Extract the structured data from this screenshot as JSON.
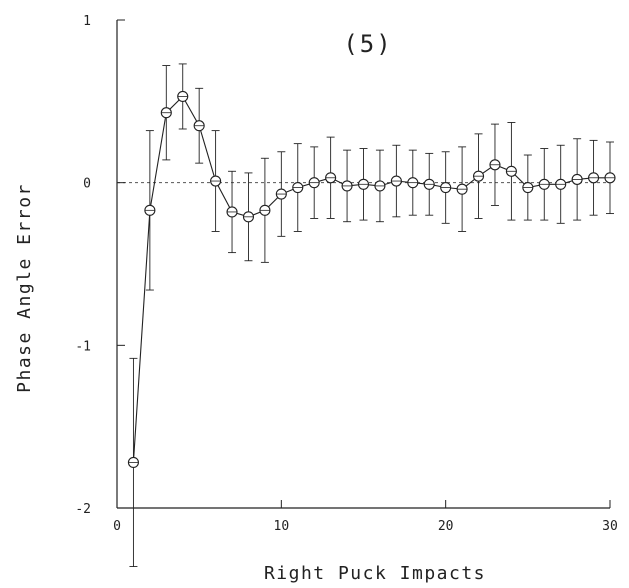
{
  "chart_data": {
    "type": "line",
    "panel_label": "(5)",
    "xlabel": "Right Puck Impacts",
    "ylabel": "Phase Angle Error",
    "xlim": [
      0,
      30
    ],
    "ylim": [
      -2,
      1
    ],
    "x_ticks": [
      0,
      10,
      20,
      30
    ],
    "y_ticks": [
      -2,
      -1,
      0,
      1
    ],
    "x_tick_labels": [
      "0",
      "10",
      "20",
      "30"
    ],
    "y_tick_labels": [
      "-2",
      "-1",
      "0",
      "1"
    ],
    "reference_line": {
      "y": 0,
      "style": "dotted"
    },
    "grid": false,
    "legend": "none",
    "marker": "open-circle",
    "error_bars": true,
    "colors": {
      "line": "#222222",
      "reference": "#555555"
    },
    "series": [
      {
        "points": [
          {
            "x": 1,
            "y": -1.72,
            "err": 0.64
          },
          {
            "x": 2,
            "y": -0.17,
            "err": 0.49
          },
          {
            "x": 3,
            "y": 0.43,
            "err": 0.29
          },
          {
            "x": 4,
            "y": 0.53,
            "err": 0.2
          },
          {
            "x": 5,
            "y": 0.35,
            "err": 0.23
          },
          {
            "x": 6,
            "y": 0.01,
            "err": 0.31
          },
          {
            "x": 7,
            "y": -0.18,
            "err": 0.25
          },
          {
            "x": 8,
            "y": -0.21,
            "err": 0.27
          },
          {
            "x": 9,
            "y": -0.17,
            "err": 0.32
          },
          {
            "x": 10,
            "y": -0.07,
            "err": 0.26
          },
          {
            "x": 11,
            "y": -0.03,
            "err": 0.27
          },
          {
            "x": 12,
            "y": 0.0,
            "err": 0.22
          },
          {
            "x": 13,
            "y": 0.03,
            "err": 0.25
          },
          {
            "x": 14,
            "y": -0.02,
            "err": 0.22
          },
          {
            "x": 15,
            "y": -0.01,
            "err": 0.22
          },
          {
            "x": 16,
            "y": -0.02,
            "err": 0.22
          },
          {
            "x": 17,
            "y": 0.01,
            "err": 0.22
          },
          {
            "x": 18,
            "y": 0.0,
            "err": 0.2
          },
          {
            "x": 19,
            "y": -0.01,
            "err": 0.19
          },
          {
            "x": 20,
            "y": -0.03,
            "err": 0.22
          },
          {
            "x": 21,
            "y": -0.04,
            "err": 0.26
          },
          {
            "x": 22,
            "y": 0.04,
            "err": 0.26
          },
          {
            "x": 23,
            "y": 0.11,
            "err": 0.25
          },
          {
            "x": 24,
            "y": 0.07,
            "err": 0.3
          },
          {
            "x": 25,
            "y": -0.03,
            "err": 0.2
          },
          {
            "x": 26,
            "y": -0.01,
            "err": 0.22
          },
          {
            "x": 27,
            "y": -0.01,
            "err": 0.24
          },
          {
            "x": 28,
            "y": 0.02,
            "err": 0.25
          },
          {
            "x": 29,
            "y": 0.03,
            "err": 0.23
          },
          {
            "x": 30,
            "y": 0.03,
            "err": 0.22
          }
        ]
      }
    ]
  }
}
